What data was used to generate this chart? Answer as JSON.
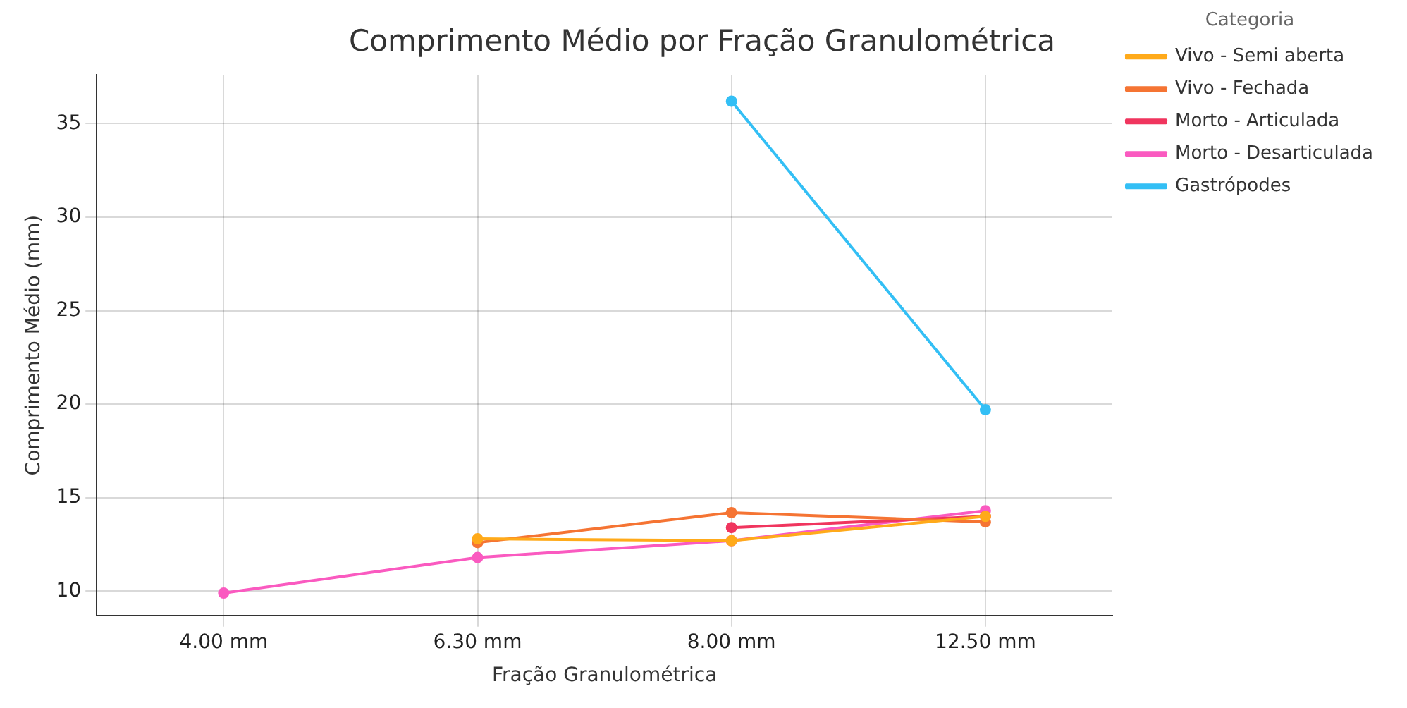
{
  "chart_data": {
    "type": "line",
    "title": "Comprimento Médio por Fração Granulométrica",
    "xlabel": "Fração Granulométrica",
    "ylabel": "Comprimento Médio (mm)",
    "legend_title": "Categoria",
    "categories": [
      "4.00 mm",
      "6.30 mm",
      "8.00 mm",
      "12.50 mm"
    ],
    "series": [
      {
        "name": "Vivo - Semi aberta",
        "color": "#ffaa1a",
        "values": [
          null,
          12.8,
          12.7,
          14.0
        ]
      },
      {
        "name": "Vivo - Fechada",
        "color": "#f57433",
        "values": [
          null,
          12.6,
          14.2,
          13.7
        ]
      },
      {
        "name": "Morto - Articulada",
        "color": "#f0355e",
        "values": [
          null,
          null,
          13.4,
          14.0
        ]
      },
      {
        "name": "Morto - Desarticulada",
        "color": "#fa5ac0",
        "values": [
          9.9,
          11.8,
          12.7,
          14.3
        ]
      },
      {
        "name": "Gastrópodes",
        "color": "#33bff5",
        "values": [
          null,
          null,
          36.2,
          19.7
        ]
      }
    ],
    "ylim": [
      8.7,
      37.6
    ],
    "yticks": [
      10,
      15,
      20,
      25,
      30,
      35
    ],
    "grid": true,
    "legend": "top right",
    "marker": "circle",
    "line_style": "solid"
  }
}
